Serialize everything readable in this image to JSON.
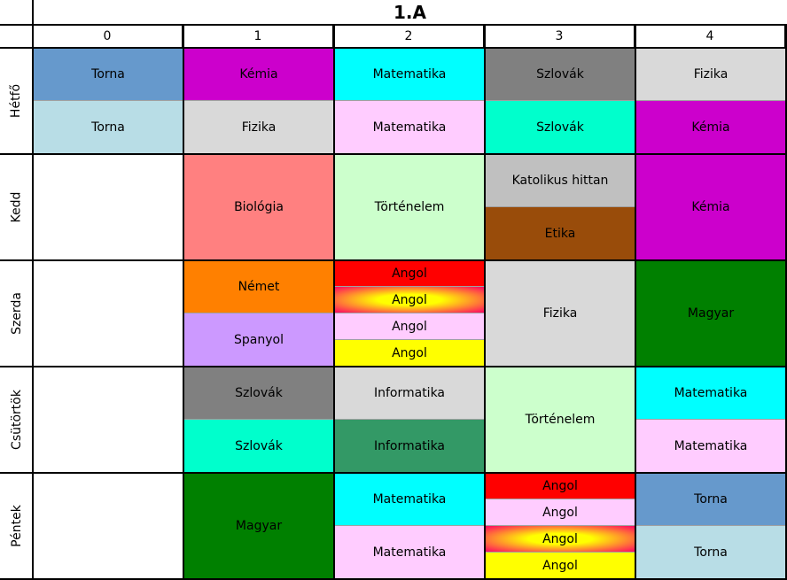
{
  "title": "1.A",
  "columns": [
    "0",
    "1",
    "2",
    "3",
    "4"
  ],
  "days": [
    {
      "name": "Hétfő",
      "slots": [
        [
          {
            "subject": "Torna",
            "color": "#6699cc"
          },
          {
            "subject": "Torna",
            "color": "#b8dde6"
          }
        ],
        [
          {
            "subject": "Kémia",
            "color": "#cc00cc"
          },
          {
            "subject": "Fizika",
            "color": "#d9d9d9"
          }
        ],
        [
          {
            "subject": "Matematika",
            "color": "#00ffff"
          },
          {
            "subject": "Matematika",
            "color": "#ffccff"
          }
        ],
        [
          {
            "subject": "Szlovák",
            "color": "#808080"
          },
          {
            "subject": "Szlovák",
            "color": "#00ffcc"
          }
        ],
        [
          {
            "subject": "Fizika",
            "color": "#d9d9d9"
          },
          {
            "subject": "Kémia",
            "color": "#cc00cc"
          }
        ]
      ]
    },
    {
      "name": "Kedd",
      "slots": [
        [],
        [
          {
            "subject": "Biológia",
            "color": "#ff8080"
          }
        ],
        [
          {
            "subject": "Történelem",
            "color": "#ccffcc"
          }
        ],
        [
          {
            "subject": "Katolikus hittan",
            "color": "#c0c0c0"
          },
          {
            "subject": "Etika",
            "color": "#994c0a"
          }
        ],
        [
          {
            "subject": "Kémia",
            "color": "#cc00cc"
          }
        ]
      ]
    },
    {
      "name": "Szerda",
      "slots": [
        [],
        [
          {
            "subject": "Német",
            "color": "#ff8000"
          },
          {
            "subject": "Spanyol",
            "color": "#cc99ff"
          }
        ],
        [
          {
            "subject": "Angol",
            "color": "#ff0000"
          },
          {
            "subject": "Angol",
            "color": [
              "#ffff00",
              "#ff0066"
            ]
          },
          {
            "subject": "Angol",
            "color": "#ffccff"
          },
          {
            "subject": "Angol",
            "color": "#ffff00"
          }
        ],
        [
          {
            "subject": "Fizika",
            "color": "#d9d9d9"
          }
        ],
        [
          {
            "subject": "Magyar",
            "color": "#008000"
          }
        ]
      ]
    },
    {
      "name": "Csütörtök",
      "slots": [
        [],
        [
          {
            "subject": "Szlovák",
            "color": "#808080"
          },
          {
            "subject": "Szlovák",
            "color": "#00ffcc"
          }
        ],
        [
          {
            "subject": "Informatika",
            "color": "#d9d9d9"
          },
          {
            "subject": "Informatika",
            "color": "#339966"
          }
        ],
        [
          {
            "subject": "Történelem",
            "color": "#ccffcc"
          }
        ],
        [
          {
            "subject": "Matematika",
            "color": "#00ffff"
          },
          {
            "subject": "Matematika",
            "color": "#ffccff"
          }
        ]
      ]
    },
    {
      "name": "Péntek",
      "slots": [
        [],
        [
          {
            "subject": "Magyar",
            "color": "#008000"
          }
        ],
        [
          {
            "subject": "Matematika",
            "color": "#00ffff"
          },
          {
            "subject": "Matematika",
            "color": "#ffccff"
          }
        ],
        [
          {
            "subject": "Angol",
            "color": "#ff0000"
          },
          {
            "subject": "Angol",
            "color": "#ffccff"
          },
          {
            "subject": "Angol",
            "color": [
              "#ffff00",
              "#ff0066"
            ]
          },
          {
            "subject": "Angol",
            "color": "#ffff00"
          }
        ],
        [
          {
            "subject": "Torna",
            "color": "#6699cc"
          },
          {
            "subject": "Torna",
            "color": "#b8dde6"
          }
        ]
      ]
    }
  ]
}
